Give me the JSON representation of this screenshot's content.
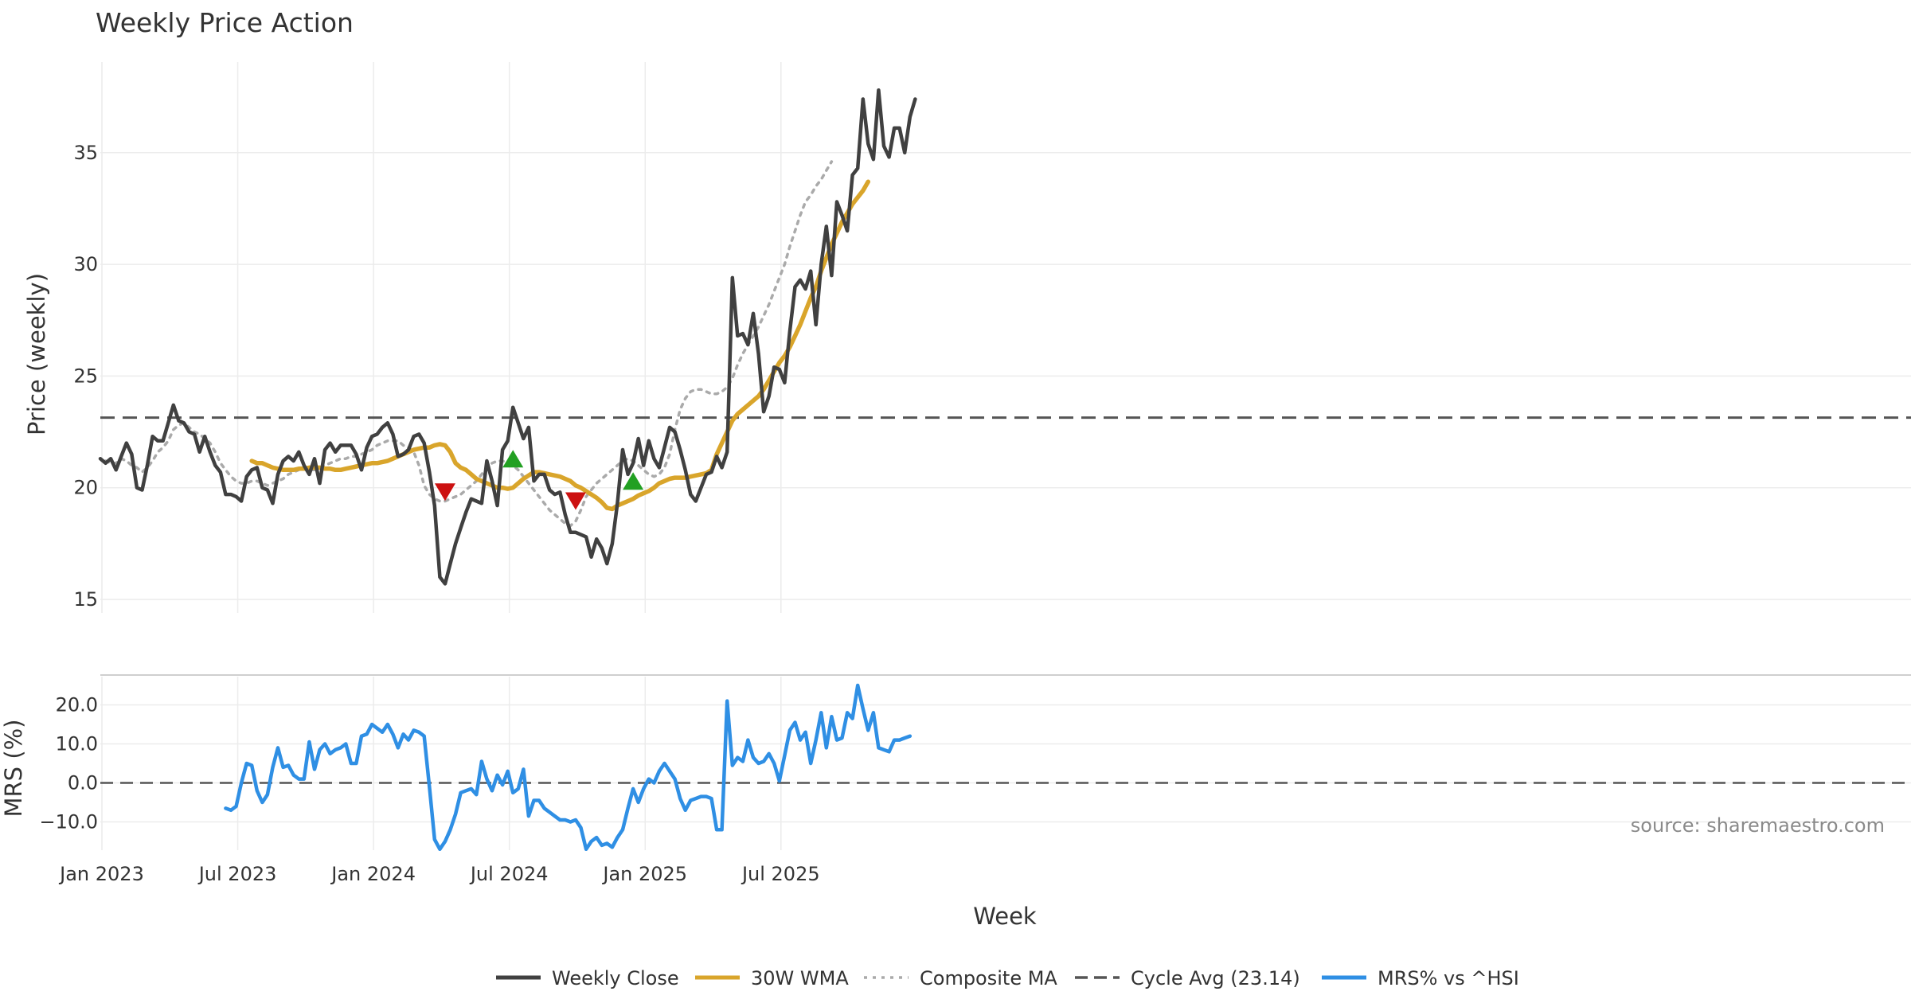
{
  "chart_data": {
    "type": "line",
    "title": "Weekly Price Action",
    "xlabel": "Week",
    "source": "source: sharemaestro.com",
    "x_tick_labels": [
      "Jan 2023",
      "Jul 2023",
      "Jan 2024",
      "Jul 2024",
      "Jan 2025",
      "Jul 2025"
    ],
    "price_panel": {
      "ylabel": "Price (weekly)",
      "ylim": [
        13.9,
        39.5
      ],
      "y_ticks": [
        15,
        20,
        25,
        30,
        35
      ],
      "y_tick_labels": [
        "15",
        "20",
        "25",
        "30",
        "35"
      ],
      "cycle_avg": 23.14,
      "series": [
        {
          "name": "Weekly Close",
          "color": "#404040",
          "start_week": 0,
          "values": [
            21.3,
            21.1,
            21.3,
            20.8,
            21.4,
            22.0,
            21.5,
            20.0,
            19.9,
            21.0,
            22.3,
            22.1,
            22.1,
            22.9,
            23.7,
            23.0,
            22.9,
            22.5,
            22.4,
            21.6,
            22.3,
            21.6,
            21.0,
            20.7,
            19.7,
            19.7,
            19.6,
            19.4,
            20.5,
            20.8,
            20.9,
            20.0,
            19.9,
            19.3,
            20.6,
            21.2,
            21.4,
            21.2,
            21.6,
            21.0,
            20.6,
            21.3,
            20.2,
            21.7,
            22.0,
            21.6,
            21.9,
            21.9,
            21.9,
            21.5,
            20.8,
            21.8,
            22.3,
            22.4,
            22.7,
            22.9,
            22.4,
            21.4,
            21.5,
            21.7,
            22.3,
            22.4,
            22.0,
            20.7,
            19.2,
            16.0,
            15.7,
            16.6,
            17.5,
            18.2,
            18.9,
            19.5,
            19.4,
            19.3,
            21.2,
            20.3,
            19.2,
            21.7,
            22.1,
            23.6,
            22.9,
            22.2,
            22.7,
            20.3,
            20.6,
            20.6,
            19.9,
            19.7,
            19.8,
            18.8,
            18.0,
            18.0,
            17.9,
            17.8,
            16.9,
            17.7,
            17.3,
            16.6,
            17.5,
            19.3,
            21.7,
            20.6,
            21.1,
            22.2,
            21.0,
            22.1,
            21.3,
            20.9,
            21.8,
            22.7,
            22.5,
            21.7,
            20.8,
            19.7,
            19.4,
            20.0,
            20.6,
            20.7,
            21.4,
            20.9,
            21.6,
            29.4,
            26.8,
            26.9,
            26.4,
            27.8,
            26.0,
            23.4,
            24.1,
            25.4,
            25.3,
            24.7,
            27.0,
            29.0,
            29.3,
            28.9,
            29.7,
            27.3,
            30.0,
            31.7,
            29.5,
            32.8,
            32.2,
            31.5,
            34.0,
            34.3,
            37.4,
            35.4,
            34.7,
            37.8,
            35.3,
            34.8,
            36.1,
            36.1,
            35.0,
            36.6,
            37.4
          ]
        },
        {
          "name": "30W WMA",
          "color": "#d9a52b",
          "start_week": 29,
          "values": [
            21.2,
            21.1,
            21.1,
            21.0,
            20.9,
            20.85,
            20.8,
            20.8,
            20.8,
            20.85,
            20.85,
            20.9,
            20.9,
            20.9,
            20.85,
            20.85,
            20.8,
            20.8,
            20.85,
            20.9,
            20.95,
            21.0,
            21.05,
            21.1,
            21.1,
            21.15,
            21.2,
            21.3,
            21.4,
            21.5,
            21.6,
            21.7,
            21.75,
            21.8,
            21.8,
            21.9,
            21.95,
            21.9,
            21.6,
            21.1,
            20.9,
            20.8,
            20.6,
            20.4,
            20.3,
            20.2,
            20.1,
            20.0,
            20.0,
            19.95,
            20.0,
            20.2,
            20.4,
            20.55,
            20.7,
            20.7,
            20.65,
            20.6,
            20.55,
            20.5,
            20.4,
            20.3,
            20.1,
            20.0,
            19.85,
            19.7,
            19.55,
            19.35,
            19.1,
            19.05,
            19.2,
            19.3,
            19.4,
            19.5,
            19.65,
            19.75,
            19.85,
            20.0,
            20.2,
            20.3,
            20.4,
            20.45,
            20.45,
            20.45,
            20.5,
            20.55,
            20.6,
            20.65,
            20.8,
            21.5,
            22.0,
            22.5,
            23.0,
            23.3,
            23.5,
            23.7,
            23.9,
            24.1,
            24.4,
            24.8,
            25.2,
            25.6,
            25.9,
            26.3,
            26.8,
            27.3,
            27.9,
            28.5,
            29.0,
            29.7,
            30.3,
            30.9,
            31.4,
            31.9,
            32.3,
            32.7,
            33.0,
            33.3,
            33.7
          ]
        },
        {
          "name": "Composite MA",
          "color": "#aaaaaa",
          "start_week": 1,
          "values": [
            21.2,
            21.1,
            21.1,
            21.3,
            21.2,
            21.0,
            20.9,
            20.7,
            20.9,
            21.2,
            21.6,
            21.8,
            22.1,
            22.6,
            22.8,
            22.9,
            22.7,
            22.5,
            22.4,
            22.2,
            22.0,
            21.6,
            21.1,
            20.8,
            20.5,
            20.3,
            20.2,
            20.2,
            20.3,
            20.3,
            20.2,
            20.1,
            20.2,
            20.3,
            20.4,
            20.6,
            20.7,
            20.8,
            20.9,
            20.8,
            20.8,
            20.9,
            21.0,
            21.1,
            21.2,
            21.3,
            21.3,
            21.4,
            21.4,
            21.5,
            21.6,
            21.7,
            21.9,
            22.0,
            22.1,
            22.1,
            22.1,
            21.9,
            21.8,
            21.6,
            21.0,
            20.1,
            19.7,
            19.5,
            19.4,
            19.4,
            19.5,
            19.6,
            19.7,
            19.9,
            20.1,
            20.3,
            20.6,
            20.9,
            21.1,
            21.2,
            21.2,
            21.1,
            21.0,
            20.8,
            20.5,
            20.2,
            19.9,
            19.6,
            19.3,
            19.0,
            18.8,
            18.6,
            18.4,
            18.3,
            18.5,
            19.0,
            19.6,
            19.9,
            20.2,
            20.4,
            20.6,
            20.8,
            21.0,
            21.2,
            21.3,
            21.2,
            21.0,
            20.8,
            20.6,
            20.5,
            20.6,
            20.9,
            21.5,
            22.6,
            23.5,
            24.0,
            24.3,
            24.4,
            24.4,
            24.3,
            24.2,
            24.2,
            24.3,
            24.5,
            24.9,
            25.5,
            26.0,
            26.4,
            26.8,
            27.2,
            27.7,
            28.2,
            28.8,
            29.4,
            30.0,
            30.8,
            31.5,
            32.2,
            32.8,
            33.1,
            33.5,
            33.8,
            34.2,
            34.6
          ]
        }
      ],
      "sell_signals": [
        {
          "week": 66,
          "value": 19.8
        },
        {
          "week": 91,
          "value": 19.4
        }
      ],
      "buy_signals": [
        {
          "week": 79,
          "value": 21.3
        },
        {
          "week": 102,
          "value": 20.3
        }
      ]
    },
    "mrs_panel": {
      "ylabel": "MRS (%)",
      "ylim": [
        -17,
        27
      ],
      "y_ticks": [
        -10,
        0,
        10,
        20
      ],
      "y_tick_labels": [
        "−10.0",
        "0.0",
        "10.0",
        "20.0"
      ],
      "zero_line": 0,
      "series": [
        {
          "name": "MRS% vs ^HSI",
          "color": "#2f8fe4",
          "start_week": 24,
          "values": [
            -6.5,
            -7.0,
            -6.0,
            0.0,
            5.0,
            4.5,
            -2.0,
            -5.0,
            -3.0,
            4.0,
            9.0,
            4.0,
            4.5,
            2.0,
            1.0,
            1.0,
            10.5,
            3.5,
            8.5,
            10.0,
            7.5,
            8.5,
            9.0,
            10.0,
            5.0,
            5.0,
            12.0,
            12.5,
            15.0,
            14.0,
            13.0,
            15.0,
            12.5,
            9.0,
            12.5,
            11.0,
            13.5,
            13.0,
            12.0,
            -1.0,
            -14.5,
            -17.0,
            -15.0,
            -12.0,
            -8.0,
            -2.5,
            -2.0,
            -1.5,
            -3.0,
            5.5,
            1.0,
            -2.0,
            2.0,
            -0.5,
            3.0,
            -2.5,
            -1.5,
            3.5,
            -8.5,
            -4.5,
            -4.5,
            -6.5,
            -7.5,
            -8.5,
            -9.5,
            -9.5,
            -10.0,
            -9.5,
            -11.5,
            -17.0,
            -15.0,
            -14.0,
            -16.0,
            -15.5,
            -16.5,
            -14.0,
            -12.0,
            -6.5,
            -1.5,
            -5.0,
            -1.5,
            1.0,
            0.0,
            3.0,
            5.0,
            3.0,
            1.0,
            -4.0,
            -7.0,
            -4.5,
            -4.0,
            -3.5,
            -3.5,
            -4.0,
            -12.0,
            -12.0,
            21.0,
            4.5,
            6.5,
            5.5,
            11.0,
            6.5,
            5.0,
            5.5,
            7.5,
            5.0,
            0.5,
            7.0,
            13.5,
            15.5,
            11.0,
            13.0,
            5.0,
            11.0,
            18.0,
            9.0,
            17.0,
            11.0,
            11.5,
            18.0,
            16.5,
            25.0,
            19.0,
            13.5,
            18.0,
            9.0,
            8.5,
            8.0,
            11.0,
            11.0,
            11.5,
            12.0
          ]
        }
      ]
    },
    "legend": [
      {
        "label": "Weekly Close",
        "color": "#404040",
        "style": "solid"
      },
      {
        "label": "30W WMA",
        "color": "#d9a52b",
        "style": "solid"
      },
      {
        "label": "Composite MA",
        "color": "#aaaaaa",
        "style": "dotted"
      },
      {
        "label": "Cycle Avg (23.14)",
        "color": "#555555",
        "style": "dashed"
      },
      {
        "label": "MRS% vs ^HSI",
        "color": "#2f8fe4",
        "style": "solid"
      }
    ]
  }
}
